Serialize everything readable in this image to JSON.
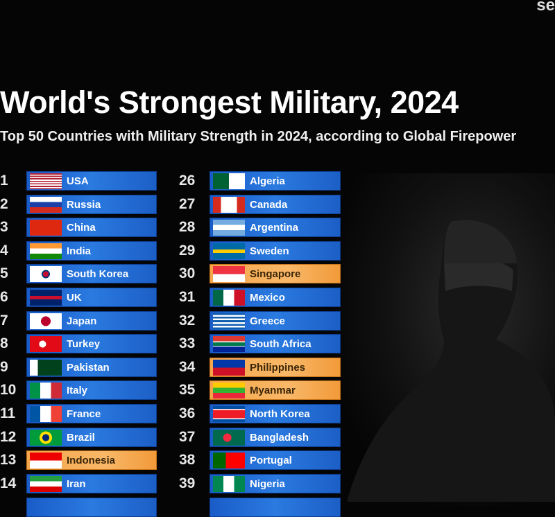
{
  "corner_text": "se",
  "title": "World's Strongest Military, 2024",
  "subtitle": "Top 50 Countries with Military Strength in 2024, according to Global Firepower",
  "highlight_color": "#f5a54a",
  "bar_color": "#1f6ad6",
  "left_column": [
    {
      "rank": "1",
      "country": "USA"
    },
    {
      "rank": "2",
      "country": "Russia"
    },
    {
      "rank": "3",
      "country": "China"
    },
    {
      "rank": "4",
      "country": "India"
    },
    {
      "rank": "5",
      "country": "South Korea"
    },
    {
      "rank": "6",
      "country": "UK"
    },
    {
      "rank": "7",
      "country": "Japan"
    },
    {
      "rank": "8",
      "country": "Turkey"
    },
    {
      "rank": "9",
      "country": "Pakistan"
    },
    {
      "rank": "10",
      "country": "Italy"
    },
    {
      "rank": "11",
      "country": "France"
    },
    {
      "rank": "12",
      "country": "Brazil"
    },
    {
      "rank": "13",
      "country": "Indonesia",
      "highlight": true
    },
    {
      "rank": "14",
      "country": "Iran"
    }
  ],
  "right_column": [
    {
      "rank": "26",
      "country": "Algeria"
    },
    {
      "rank": "27",
      "country": "Canada"
    },
    {
      "rank": "28",
      "country": "Argentina"
    },
    {
      "rank": "29",
      "country": "Sweden"
    },
    {
      "rank": "30",
      "country": "Singapore",
      "highlight": true
    },
    {
      "rank": "31",
      "country": "Mexico"
    },
    {
      "rank": "32",
      "country": "Greece"
    },
    {
      "rank": "33",
      "country": "South Africa"
    },
    {
      "rank": "34",
      "country": "Philippines",
      "highlight": true
    },
    {
      "rank": "35",
      "country": "Myanmar",
      "highlight": true
    },
    {
      "rank": "36",
      "country": "North Korea"
    },
    {
      "rank": "37",
      "country": "Bangladesh"
    },
    {
      "rank": "38",
      "country": "Portugal"
    },
    {
      "rank": "39",
      "country": "Nigeria"
    }
  ]
}
